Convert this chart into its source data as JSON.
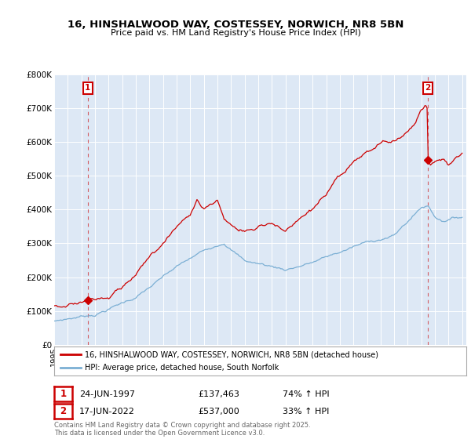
{
  "title1": "16, HINSHALWOOD WAY, COSTESSEY, NORWICH, NR8 5BN",
  "title2": "Price paid vs. HM Land Registry's House Price Index (HPI)",
  "legend_line1": "16, HINSHALWOOD WAY, COSTESSEY, NORWICH, NR8 5BN (detached house)",
  "legend_line2": "HPI: Average price, detached house, South Norfolk",
  "annotation1_date": "24-JUN-1997",
  "annotation1_price": "£137,463",
  "annotation1_hpi": "74% ↑ HPI",
  "annotation2_date": "17-JUN-2022",
  "annotation2_price": "£537,000",
  "annotation2_hpi": "33% ↑ HPI",
  "footer": "Contains HM Land Registry data © Crown copyright and database right 2025.\nThis data is licensed under the Open Government Licence v3.0.",
  "red_color": "#cc0000",
  "blue_color": "#7bafd4",
  "bg_color": "#dde8f5",
  "ylim_max": 800000,
  "sale1_year": 1997.47,
  "sale1_price": 137463,
  "sale2_year": 2022.46,
  "sale2_price": 537000
}
